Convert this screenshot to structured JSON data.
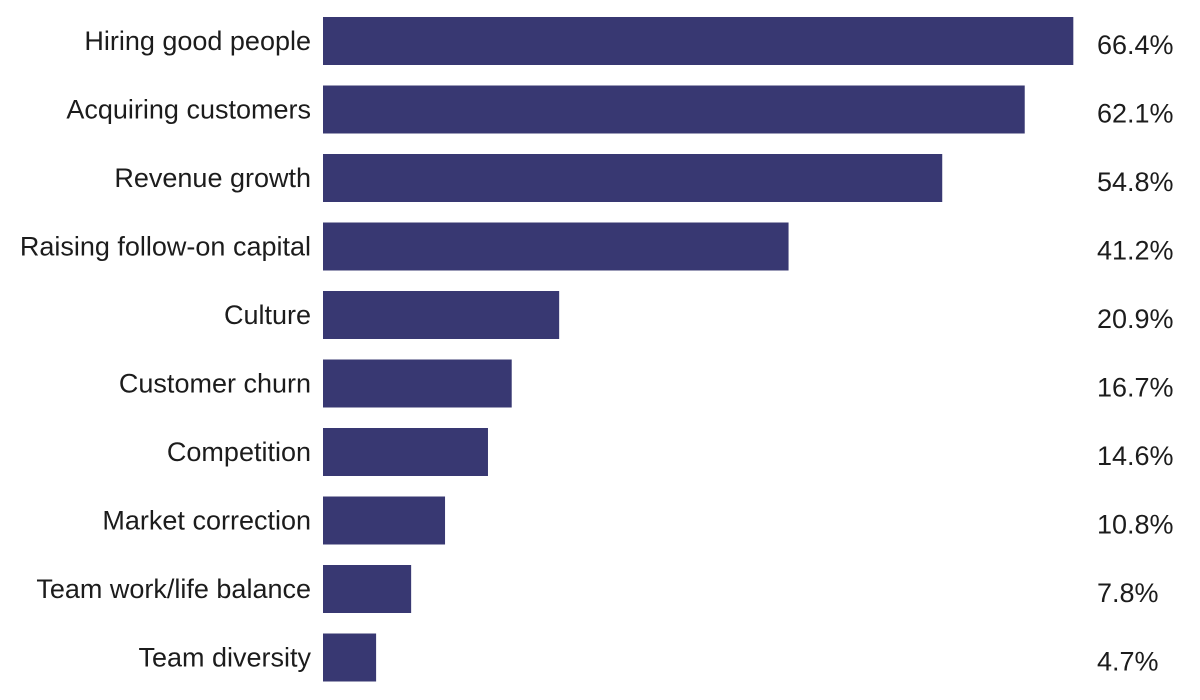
{
  "chart_data": {
    "type": "bar",
    "orientation": "horizontal",
    "categories": [
      "Hiring good people",
      "Acquiring customers",
      "Revenue growth",
      "Raising follow-on capital",
      "Culture",
      "Customer churn",
      "Competition",
      "Market correction",
      "Team work/life balance",
      "Team diversity"
    ],
    "values": [
      66.4,
      62.1,
      54.8,
      41.2,
      20.9,
      16.7,
      14.6,
      10.8,
      7.8,
      4.7
    ],
    "value_labels": [
      "66.4%",
      "62.1%",
      "54.8%",
      "41.2%",
      "20.9%",
      "16.7%",
      "14.6%",
      "10.8%",
      "7.8%",
      "4.7%"
    ],
    "unit": "%",
    "title": "",
    "xlabel": "",
    "ylabel": "",
    "grid": false,
    "legend": "none",
    "bar_color": "#383872"
  }
}
